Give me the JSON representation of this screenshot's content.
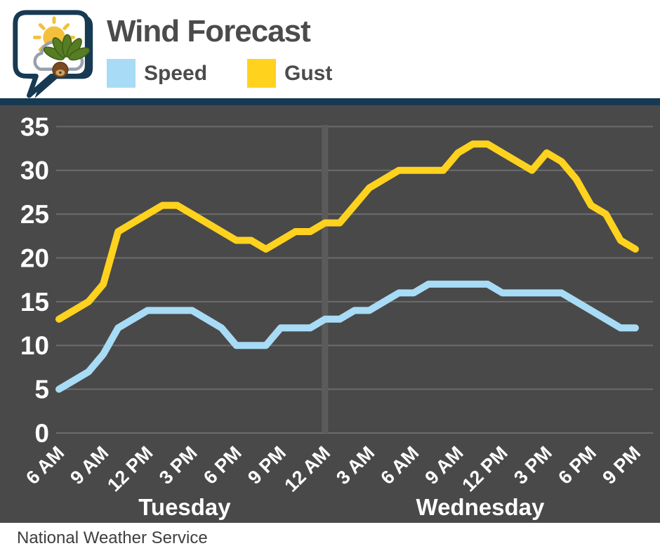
{
  "header": {
    "title": "Wind Forecast",
    "logo": "weather-speech-bubble-logo",
    "legend": [
      {
        "label": "Speed",
        "color": "#A8DBF5"
      },
      {
        "label": "Gust",
        "color": "#FFD21E"
      }
    ]
  },
  "footer": {
    "source": "National Weather Service"
  },
  "chart_data": {
    "type": "line",
    "title": "Wind Forecast",
    "ylim": [
      0,
      35
    ],
    "yticks": [
      0,
      5,
      10,
      15,
      20,
      25,
      30,
      35
    ],
    "grid": true,
    "grid_color": "#6C6C6C",
    "background": "#494949",
    "divider_color": "#5B5B5B",
    "values_interval": "hourly",
    "x_tick_labels": [
      "6 AM",
      "9 AM",
      "12 PM",
      "3 PM",
      "6 PM",
      "9 PM",
      "12 AM",
      "3 AM",
      "6 AM",
      "9 AM",
      "12 PM",
      "3 PM",
      "6 PM",
      "9 PM"
    ],
    "day_labels": [
      "Tuesday",
      "Wednesday"
    ],
    "day_divider_index": 18,
    "series": [
      {
        "name": "Gust",
        "color": "#FFD21E",
        "values": [
          13,
          14,
          15,
          17,
          23,
          24,
          25,
          26,
          26,
          25,
          24,
          23,
          22,
          22,
          21,
          22,
          23,
          23,
          24,
          24,
          26,
          28,
          29,
          30,
          30,
          30,
          30,
          32,
          33,
          33,
          32,
          31,
          30,
          32,
          31,
          29,
          26,
          25,
          22,
          21
        ]
      },
      {
        "name": "Speed",
        "color": "#A8DBF5",
        "values": [
          5,
          6,
          7,
          9,
          12,
          13,
          14,
          14,
          14,
          14,
          13,
          12,
          10,
          10,
          10,
          12,
          12,
          12,
          13,
          13,
          14,
          14,
          15,
          16,
          16,
          17,
          17,
          17,
          17,
          17,
          16,
          16,
          16,
          16,
          16,
          15,
          14,
          13,
          12,
          12
        ]
      }
    ]
  }
}
